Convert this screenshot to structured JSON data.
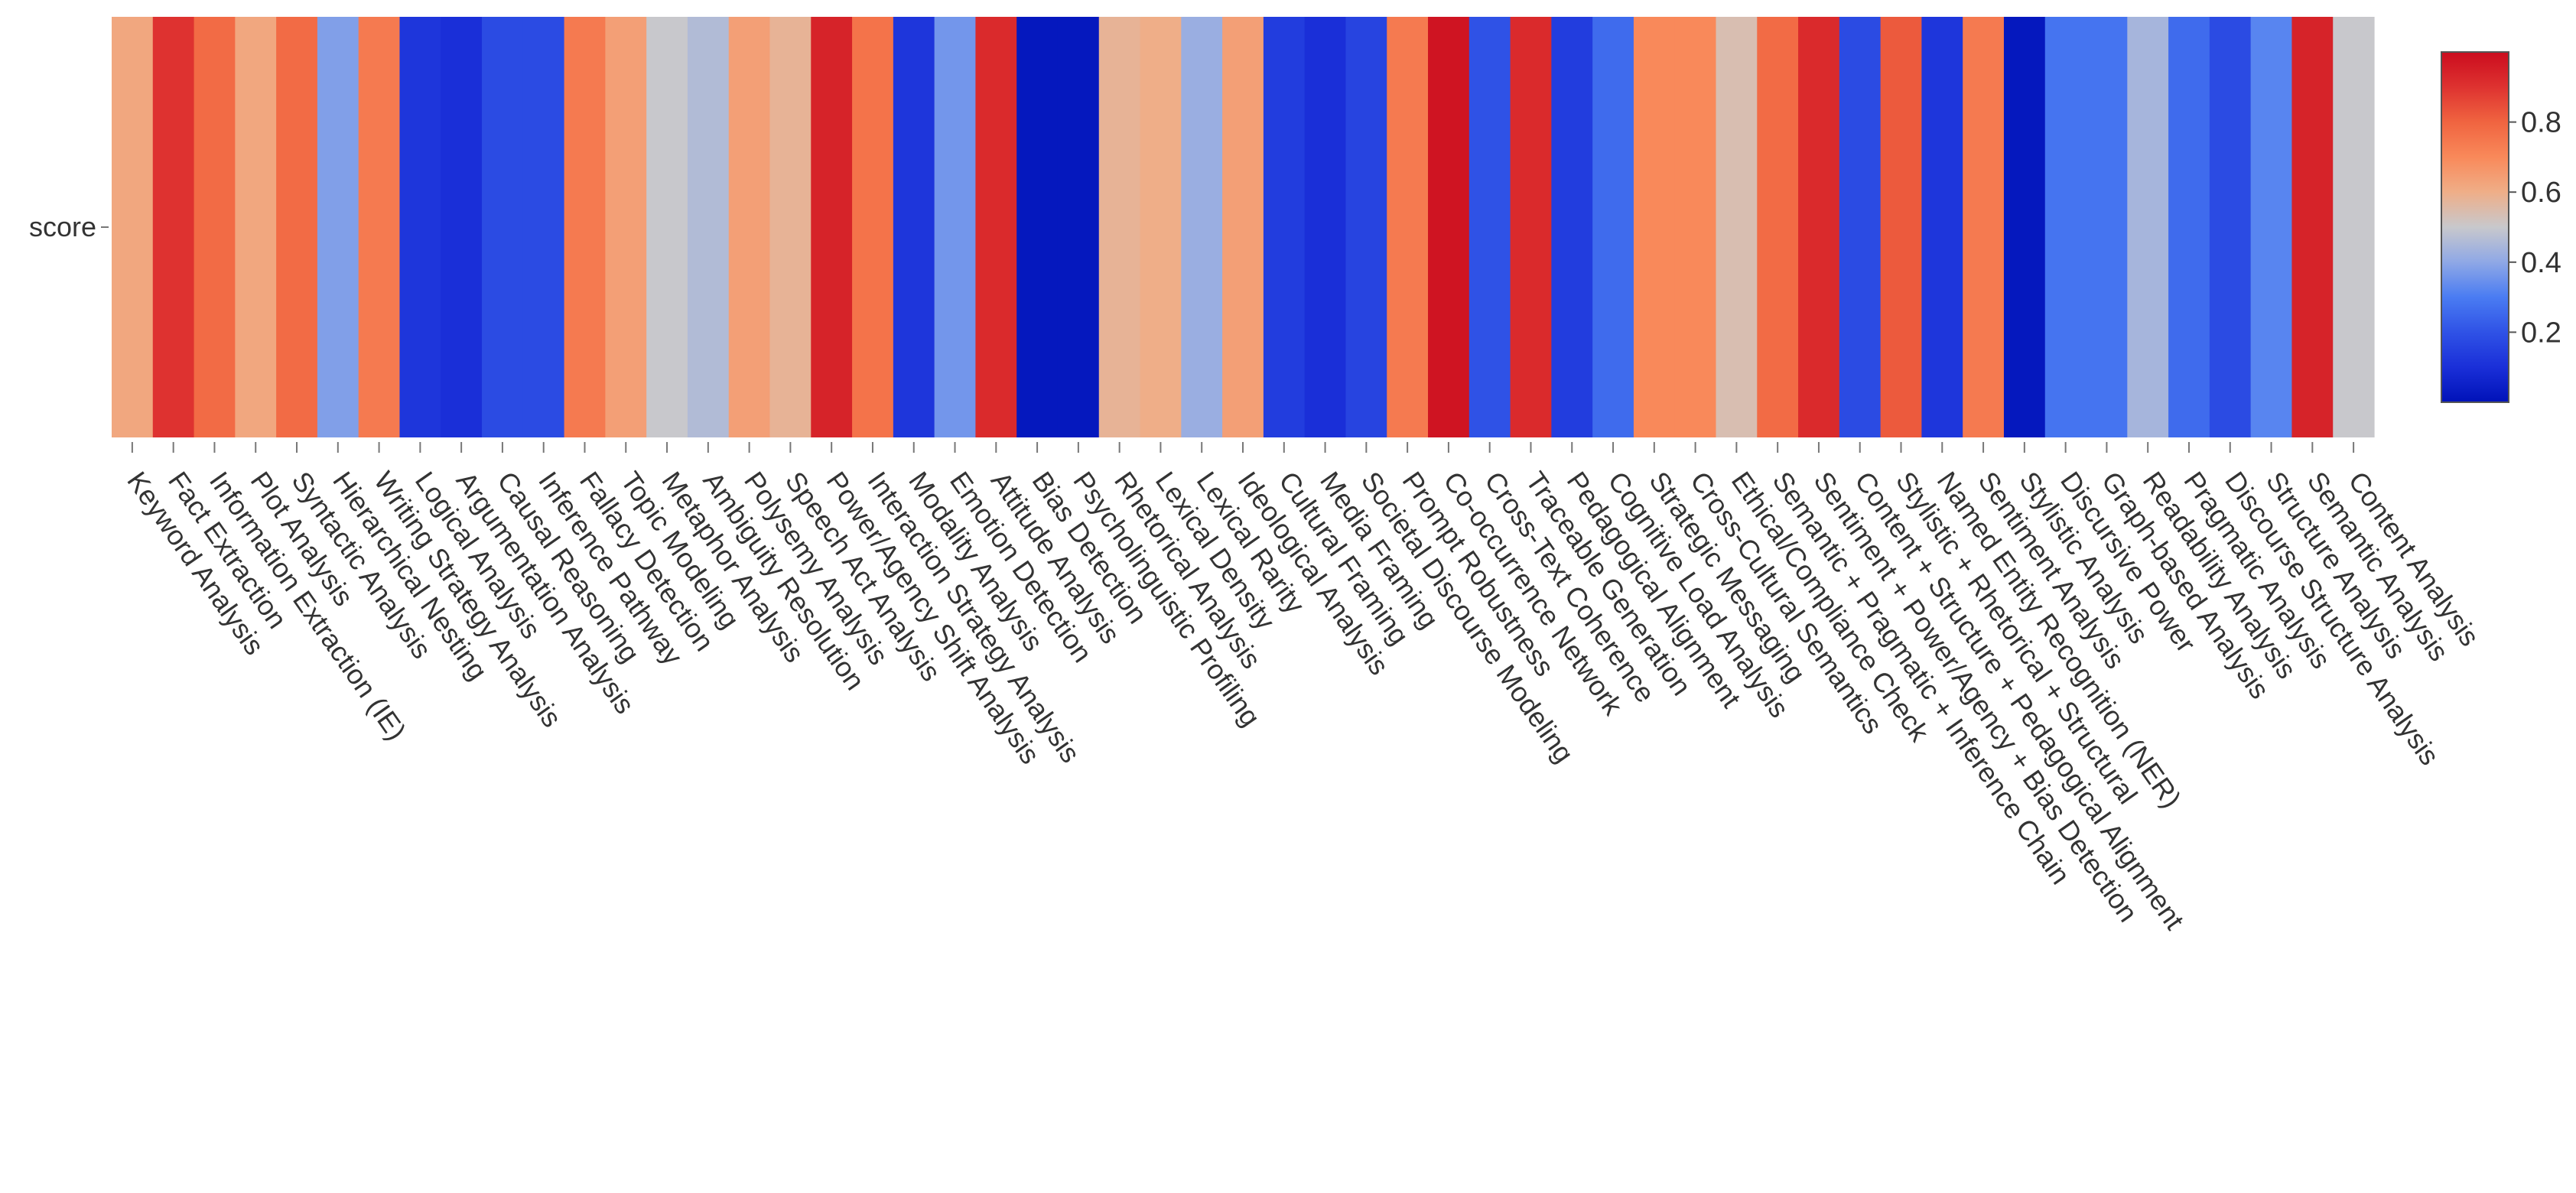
{
  "chart_data": {
    "type": "heatmap",
    "title": "",
    "xlabel": "",
    "ylabel": "",
    "rows": [
      "score"
    ],
    "colorbar": {
      "range": [
        0,
        1
      ],
      "ticks": [
        0.2,
        0.4,
        0.6,
        0.8
      ],
      "tick_labels": [
        "0.2",
        "0.4",
        "0.6",
        "0.8"
      ],
      "colorscale": "RdBu_r"
    },
    "categories": [
      "Keyword Analysis",
      "Fact Extraction",
      "Information Extraction (IE)",
      "Plot Analysis",
      "Syntactic Analysis",
      "Hierarchical Nesting",
      "Writing Strategy Analysis",
      "Logical Analysis",
      "Argumentation Analysis",
      "Causal Reasoning",
      "Inference Pathway",
      "Fallacy Detection",
      "Topic Modeling",
      "Metaphor Analysis",
      "Ambiguity Resolution",
      "Polysemy Analysis",
      "Speech Act Analysis",
      "Power/Agency Shift Analysis",
      "Interaction Strategy Analysis",
      "Modality Analysis",
      "Emotion Detection",
      "Attitude Analysis",
      "Bias Detection",
      "Psycholinguistic Profiling",
      "Rhetorical Analysis",
      "Lexical Density",
      "Lexical Rarity",
      "Ideological Analysis",
      "Cultural Framing",
      "Media Framing",
      "Societal Discourse Modeling",
      "Prompt Robustness",
      "Co-occurrence Network",
      "Cross-Text Coherence",
      "Traceable Generation",
      "Pedagogical Alignment",
      "Cognitive Load Analysis",
      "Strategic Messaging",
      "Cross-Cultural Semantics",
      "Ethical/Compliance Check",
      "Semantic + Pragmatic + Inference Chain",
      "Sentiment + Power/Agency + Bias Detection",
      "Content + Structure + Pedagogical Alignment",
      "Stylistic + Rhetorical + Structural",
      "Named Entity Recognition (NER)",
      "Sentiment Analysis",
      "Stylistic Analysis",
      "Discursive Power",
      "Graph-based Analysis",
      "Readability Analysis",
      "Pragmatic Analysis",
      "Discourse Structure Analysis",
      "Structure Analysis",
      "Semantic Analysis",
      "Content Analysis"
    ],
    "values": [
      0.62,
      0.9,
      0.78,
      0.62,
      0.78,
      0.38,
      0.74,
      0.12,
      0.1,
      0.18,
      0.18,
      0.74,
      0.64,
      0.5,
      0.46,
      0.64,
      0.58,
      0.94,
      0.76,
      0.12,
      0.36,
      0.92,
      0.02,
      0.02,
      0.58,
      0.6,
      0.42,
      0.64,
      0.14,
      0.1,
      0.16,
      0.74,
      0.98,
      0.2,
      0.92,
      0.14,
      0.26,
      0.7,
      0.7,
      0.54,
      0.78,
      0.92,
      0.18,
      0.82,
      0.12,
      0.74,
      0.02,
      0.28,
      0.28,
      0.44,
      0.26,
      0.18,
      0.32,
      0.94,
      0.5
    ]
  }
}
